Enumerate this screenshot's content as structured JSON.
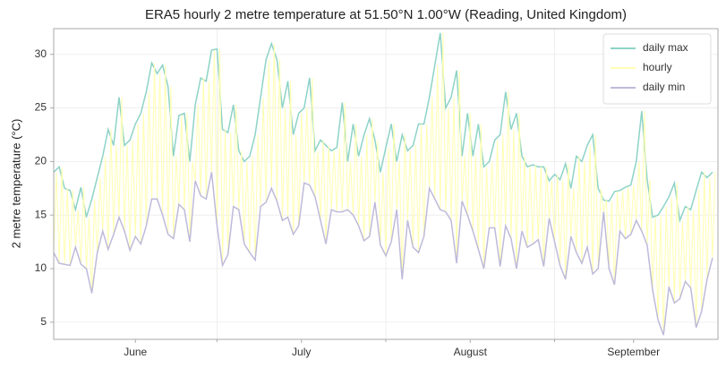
{
  "chart_data": {
    "type": "line",
    "title": "ERA5 hourly 2 metre temperature at 51.50°N 1.00°W (Reading, United Kingdom)",
    "ylabel": "2 metre temperature (°C)",
    "xlim": [
      0,
      122
    ],
    "ylim": [
      3.4,
      32.4
    ],
    "xticks": [
      {
        "value": 15,
        "label": "June"
      },
      {
        "value": 45.5,
        "label": "July"
      },
      {
        "value": 76.5,
        "label": "August"
      },
      {
        "value": 106.5,
        "label": "September"
      }
    ],
    "xminorticks": [
      30,
      61,
      92
    ],
    "yticks": [
      5,
      10,
      15,
      20,
      25,
      30
    ],
    "grid": true,
    "legend": "upper right",
    "series": [
      {
        "name": "daily max",
        "color": "#8dd3c7",
        "x": [
          0,
          1,
          2,
          3,
          4,
          5,
          6,
          7,
          8,
          9,
          10,
          11,
          12,
          13,
          14,
          15,
          16,
          17,
          18,
          19,
          20,
          21,
          22,
          23,
          24,
          25,
          26,
          27,
          28,
          29,
          30,
          31,
          32,
          33,
          34,
          35,
          36,
          37,
          38,
          39,
          40,
          41,
          42,
          43,
          44,
          45,
          46,
          47,
          48,
          49,
          50,
          51,
          52,
          53,
          54,
          55,
          56,
          57,
          58,
          59,
          60,
          61,
          62,
          63,
          64,
          65,
          66,
          67,
          68,
          69,
          70,
          71,
          72,
          73,
          74,
          75,
          76,
          77,
          78,
          79,
          80,
          81,
          82,
          83,
          84,
          85,
          86,
          87,
          88,
          89,
          90,
          91,
          92,
          93,
          94,
          95,
          96,
          97,
          98,
          99,
          100,
          101,
          102,
          103,
          104,
          105,
          106,
          107,
          108,
          109,
          110,
          111,
          112,
          113,
          114,
          115,
          116,
          117,
          118,
          119,
          120,
          121
        ],
        "values": [
          19,
          19.5,
          17.5,
          17.3,
          15.5,
          17.6,
          14.8,
          16.5,
          18.5,
          20.5,
          23,
          21.5,
          26,
          21.5,
          22,
          23.5,
          24.5,
          26.5,
          29.2,
          28.2,
          29,
          27,
          20.5,
          24.3,
          24.5,
          20,
          25.3,
          27.8,
          27.5,
          30.4,
          30.5,
          23,
          22.7,
          25.3,
          21,
          20,
          20.5,
          22.5,
          26,
          29.5,
          31,
          29.5,
          25,
          27.5,
          22.5,
          24.5,
          25,
          27.8,
          21,
          22,
          21.5,
          21,
          21.3,
          25.5,
          20,
          23.5,
          20.5,
          22.5,
          24,
          22,
          19,
          21.3,
          23.5,
          20,
          22.5,
          21,
          21.5,
          23.5,
          23.5,
          26,
          29,
          32,
          25,
          26,
          28.5,
          20.5,
          24.5,
          20.5,
          23.5,
          19.5,
          20,
          22,
          22.5,
          26.5,
          23,
          24.5,
          20.5,
          19.5,
          19.7,
          19.5,
          19.5,
          18.2,
          18.8,
          18.3,
          19.8,
          17.5,
          20.5,
          20,
          21.5,
          22.5,
          17.5,
          16.4,
          16.3,
          17.2,
          17.3,
          17.6,
          17.8,
          20,
          24.7,
          18.3,
          14.8,
          15,
          15.8,
          16.7,
          18,
          14.5,
          15.8,
          15.5,
          17.3,
          19,
          18.5,
          19
        ]
      },
      {
        "name": "hourly",
        "color": "#ffffb3",
        "x": [
          0,
          0.5,
          1,
          1.5,
          2,
          2.5,
          3,
          3.5,
          4,
          4.5,
          5,
          5.5,
          6,
          6.5,
          7,
          7.5,
          8,
          8.5,
          9,
          9.5,
          10,
          10.5,
          11,
          11.5,
          12,
          12.5,
          13,
          13.5,
          14,
          14.5,
          15,
          15.5,
          16,
          16.5,
          17,
          17.5,
          18,
          18.5,
          19,
          19.5,
          20,
          20.5,
          21,
          21.5,
          22,
          22.5,
          23,
          23.5,
          24,
          24.5,
          25,
          25.5,
          26,
          26.5,
          27,
          27.5,
          28,
          28.5,
          29,
          29.5,
          30,
          30.5,
          31,
          31.5,
          32,
          32.5,
          33,
          33.5,
          34,
          34.5,
          35,
          35.5,
          36,
          36.5,
          37,
          37.5,
          38,
          38.5,
          39,
          39.5,
          40,
          40.5,
          41,
          41.5,
          42,
          42.5,
          43,
          43.5,
          44,
          44.5,
          45,
          45.5,
          46,
          46.5,
          47,
          47.5,
          48,
          48.5,
          49,
          49.5,
          50,
          50.5,
          51,
          51.5,
          52,
          52.5,
          53,
          53.5,
          54,
          54.5,
          55,
          55.5,
          56,
          56.5,
          57,
          57.5,
          58,
          58.5,
          59,
          59.5,
          60,
          60.5,
          61,
          61.5,
          62,
          62.5,
          63,
          63.5,
          64,
          64.5,
          65,
          65.5,
          66,
          66.5,
          67,
          67.5,
          68,
          68.5,
          69,
          69.5,
          70,
          70.5,
          71,
          71.5,
          72,
          72.5,
          73,
          73.5,
          74,
          74.5,
          75,
          75.5,
          76,
          76.5,
          77,
          77.5,
          78,
          78.5,
          79,
          79.5,
          80,
          80.5,
          81,
          81.5,
          82,
          82.5,
          83,
          83.5,
          84,
          84.5,
          85,
          85.5,
          86,
          86.5,
          87,
          87.5,
          88,
          88.5,
          89,
          89.5,
          90,
          90.5,
          91,
          91.5,
          92,
          92.5,
          93,
          93.5,
          94,
          94.5,
          95,
          95.5,
          96,
          96.5,
          97,
          97.5,
          98,
          98.5,
          99,
          99.5,
          100,
          100.5,
          101,
          101.5,
          102,
          102.5,
          103,
          103.5,
          104,
          104.5,
          105,
          105.5,
          106,
          106.5,
          107,
          107.5,
          108,
          108.5,
          109,
          109.5,
          110,
          110.5,
          111,
          111.5,
          112,
          112.5,
          113,
          113.5,
          114,
          114.5,
          115,
          115.5,
          116,
          116.5,
          117,
          117.5,
          118,
          118.5,
          119,
          119.5,
          120,
          120.5,
          121,
          121.5
        ],
        "values": [
          11.5,
          19,
          10.5,
          19.5,
          10.4,
          17.5,
          10.3,
          17.3,
          12,
          15.5,
          10.4,
          17.6,
          10,
          14.8,
          7.7,
          16.5,
          11.5,
          18.5,
          13.5,
          20.5,
          11.8,
          23,
          13.2,
          21.5,
          14.8,
          26,
          13.5,
          21.5,
          11.7,
          22,
          13,
          23.5,
          12.3,
          24.5,
          14,
          26.5,
          16.5,
          29.2,
          16.5,
          28.2,
          15,
          29,
          13.2,
          27,
          12.8,
          20.5,
          16,
          24.3,
          15.5,
          24.5,
          12.5,
          20,
          18.2,
          25.3,
          16.8,
          27.8,
          16.5,
          27.5,
          19,
          30.4,
          14,
          30.5,
          10.3,
          23,
          11.3,
          22.7,
          15.8,
          25.3,
          15.5,
          21,
          12.3,
          20,
          11.5,
          20.5,
          10.8,
          22.5,
          15.8,
          26,
          16.2,
          29.5,
          17.5,
          31,
          16.3,
          29.5,
          14.5,
          25,
          14.8,
          27.5,
          13.2,
          22.5,
          14,
          24.5,
          18,
          25,
          17.8,
          27.8,
          16.7,
          21,
          14.5,
          22,
          12.3,
          21.5,
          15.5,
          21,
          15.3,
          21.3,
          15.3,
          25.5,
          15.5,
          20,
          15,
          23.5,
          14,
          20.5,
          12.6,
          22.5,
          13,
          24,
          16.2,
          22,
          12.2,
          19,
          11.2,
          21.3,
          12.5,
          23.5,
          15.5,
          20,
          9,
          22.5,
          14.5,
          21,
          12,
          21.5,
          11.5,
          23.5,
          13,
          23.5,
          17.5,
          26,
          16.5,
          29,
          15.5,
          32,
          15.3,
          25,
          14.5,
          26,
          10.5,
          28.5,
          16.3,
          20.5,
          15,
          24.5,
          13.5,
          20.5,
          11.8,
          23.5,
          10,
          19.5,
          13.8,
          20,
          13.8,
          22,
          10.2,
          22.5,
          14,
          26.5,
          12.8,
          23,
          10,
          24.5,
          13.5,
          20.5,
          12,
          19.5,
          12.3,
          19.7,
          12.7,
          19.5,
          10.2,
          19.5,
          14.7,
          18.2,
          12.5,
          18.8,
          10.3,
          18.3,
          9,
          19.8,
          13,
          17.5,
          11.5,
          20.5,
          10.5,
          20,
          12,
          21.5,
          9.5,
          22.5,
          10,
          17.5,
          15.3,
          16.4,
          10,
          16.3,
          8.5,
          17.2,
          13.5,
          17.3,
          12.8,
          17.6,
          13.2,
          17.8,
          14.5,
          20,
          13.5,
          24.7,
          12.2,
          18.3,
          8,
          14.8,
          5.2,
          15,
          3.8,
          15.8,
          8.3,
          16.7,
          6.8,
          18,
          7.2,
          14.5,
          8.8,
          15.8,
          8.2,
          15.5,
          4.5,
          17.3,
          6,
          19,
          9,
          18.5,
          11,
          19
        ]
      },
      {
        "name": "daily min",
        "color": "#bebada",
        "x": [
          0,
          1,
          2,
          3,
          4,
          5,
          6,
          7,
          8,
          9,
          10,
          11,
          12,
          13,
          14,
          15,
          16,
          17,
          18,
          19,
          20,
          21,
          22,
          23,
          24,
          25,
          26,
          27,
          28,
          29,
          30,
          31,
          32,
          33,
          34,
          35,
          36,
          37,
          38,
          39,
          40,
          41,
          42,
          43,
          44,
          45,
          46,
          47,
          48,
          49,
          50,
          51,
          52,
          53,
          54,
          55,
          56,
          57,
          58,
          59,
          60,
          61,
          62,
          63,
          64,
          65,
          66,
          67,
          68,
          69,
          70,
          71,
          72,
          73,
          74,
          75,
          76,
          77,
          78,
          79,
          80,
          81,
          82,
          83,
          84,
          85,
          86,
          87,
          88,
          89,
          90,
          91,
          92,
          93,
          94,
          95,
          96,
          97,
          98,
          99,
          100,
          101,
          102,
          103,
          104,
          105,
          106,
          107,
          108,
          109,
          110,
          111,
          112,
          113,
          114,
          115,
          116,
          117,
          118,
          119,
          120,
          121
        ],
        "values": [
          11.5,
          10.5,
          10.4,
          10.3,
          12,
          10.4,
          10,
          7.7,
          11.5,
          13.5,
          11.8,
          13.2,
          14.8,
          13.5,
          11.7,
          13,
          12.3,
          14,
          16.5,
          16.5,
          15,
          13.2,
          12.8,
          16,
          15.5,
          12.5,
          18.2,
          16.8,
          16.5,
          19,
          14,
          10.3,
          11.3,
          15.8,
          15.5,
          12.3,
          11.5,
          10.8,
          15.8,
          16.2,
          17.5,
          16.3,
          14.5,
          14.8,
          13.2,
          14,
          18,
          17.8,
          16.7,
          14.5,
          12.3,
          15.5,
          15.3,
          15.3,
          15.5,
          15,
          14,
          12.6,
          13,
          16.2,
          12.2,
          11.2,
          12.5,
          15.5,
          9,
          14.5,
          12,
          11.5,
          13,
          17.5,
          16.5,
          15.5,
          15.3,
          14.5,
          10.5,
          16.3,
          15,
          13.5,
          11.8,
          10,
          13.8,
          13.8,
          10.2,
          14,
          12.8,
          10,
          13.5,
          12,
          12.3,
          12.7,
          10.2,
          14.7,
          12.5,
          10.3,
          9,
          13,
          11.5,
          10.5,
          12,
          9.5,
          10,
          15.3,
          10,
          8.5,
          13.5,
          12.8,
          13.2,
          14.5,
          13.5,
          12.2,
          8,
          5.2,
          3.8,
          8.3,
          6.8,
          7.2,
          8.8,
          8.2,
          4.5,
          6,
          9,
          11
        ]
      }
    ]
  }
}
